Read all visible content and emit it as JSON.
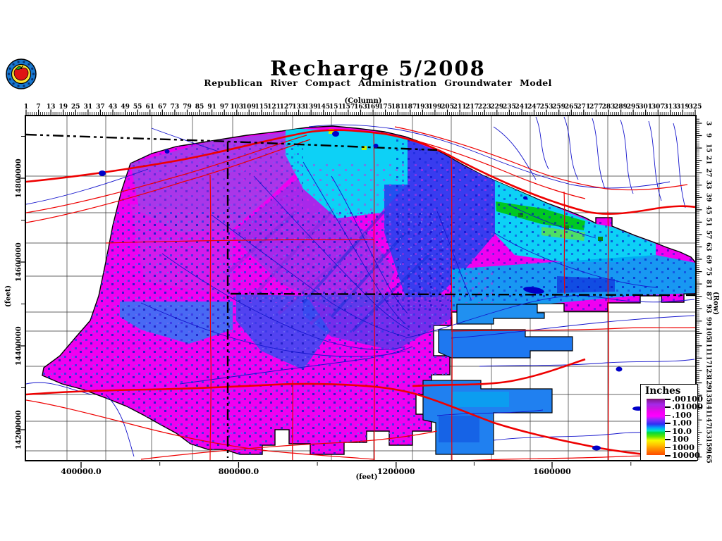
{
  "header": {
    "title": "Recharge 5/2008",
    "subtitle": "Republican River Compact Administration Groundwater Model",
    "logo": {
      "name": "rrca-apple-logo",
      "ring_color": "#1878D0",
      "inner_color": "#FFE535",
      "apple_color": "#E01414",
      "leaf_color": "#1E9E1E",
      "outline_color": "#000000"
    }
  },
  "axes": {
    "top": {
      "caption": "(Column)",
      "labels": [
        1,
        7,
        13,
        19,
        25,
        31,
        37,
        43,
        49,
        55,
        61,
        67,
        73,
        79,
        85,
        91,
        97,
        103,
        109,
        115,
        121,
        127,
        133,
        139,
        145,
        151,
        157,
        163,
        169,
        175,
        181,
        187,
        193,
        199,
        205,
        211,
        217,
        223,
        229,
        235,
        241,
        247,
        253,
        259,
        265,
        271,
        277,
        283,
        289,
        295,
        301,
        307,
        313,
        319,
        325
      ]
    },
    "right": {
      "caption": "(Row)",
      "labels": [
        3,
        9,
        15,
        21,
        27,
        33,
        39,
        45,
        51,
        57,
        63,
        69,
        75,
        81,
        87,
        93,
        99,
        105,
        111,
        117,
        123,
        129,
        135,
        141,
        147,
        153,
        159,
        165
      ]
    },
    "left": {
      "caption": "(feet)",
      "labels": [
        "14800000",
        "14600000",
        "14400000",
        "14200000"
      ]
    },
    "bottom": {
      "caption": "(feet)",
      "labels": [
        "400000.0",
        "800000.0",
        "1200000",
        "1600000"
      ]
    }
  },
  "legend": {
    "title": "Inches",
    "tick_labels": [
      ".00100",
      ".01000",
      ".100",
      "1.00",
      "10.0",
      "100",
      "1000",
      "10000"
    ],
    "gradient": [
      [
        0,
        "#6E1342"
      ],
      [
        2.5,
        "#8A1B9E"
      ],
      [
        10,
        "#A428E8"
      ],
      [
        17,
        "#C818E0"
      ],
      [
        24,
        "#F400F4"
      ],
      [
        31,
        "#FF00FF"
      ],
      [
        38,
        "#8030F8"
      ],
      [
        45,
        "#2E2EF5"
      ],
      [
        52,
        "#00AAF8"
      ],
      [
        57,
        "#00E8C0"
      ],
      [
        60,
        "#00D840"
      ],
      [
        67,
        "#60E800"
      ],
      [
        74,
        "#F8F800"
      ],
      [
        82,
        "#FFC400"
      ],
      [
        88,
        "#FF9800"
      ],
      [
        100,
        "#FF4A00"
      ]
    ]
  },
  "map": {
    "colors": {
      "base_magenta": "#F000F0",
      "purple_nw": "#A23CE8",
      "purple_west": "#C030E8",
      "fan_purple": "#9632E8",
      "cyan": "#00DCF5",
      "blue": "#2342EE",
      "east_band_blue": "#00A8F2",
      "east_core_blue": "#1040E0",
      "ks_blue": "#4040E8",
      "sw_diag_blue": "#2A52F0",
      "west_blue": "#2B7BF5",
      "island_blue": "#2090F0",
      "green": "#00C822",
      "light_green": "#55E055",
      "dark_green": "#108810",
      "yellow_green": "#C8F000",
      "lake_blue": "#0000C8"
    },
    "lines": {
      "county": "#000000",
      "road": "#EE0000",
      "stream": "#1414CC",
      "state_border": "#000000",
      "state_border_style": "dash-dot"
    }
  }
}
